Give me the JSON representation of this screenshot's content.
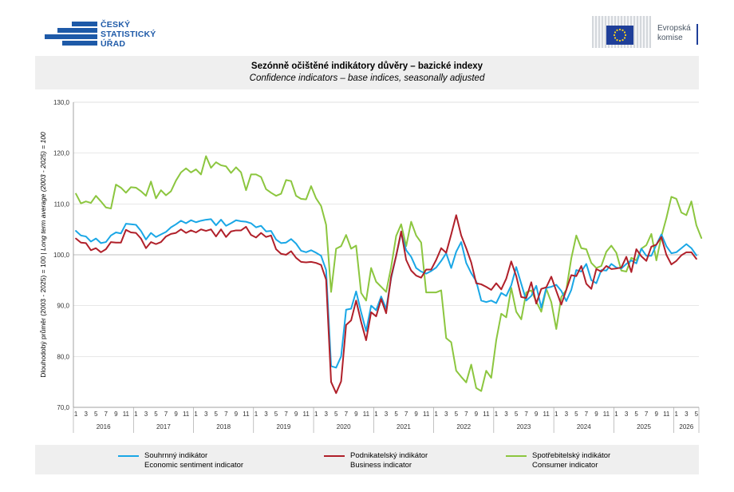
{
  "logos": {
    "csu": {
      "line1": "ČESKÝ",
      "line2": "STATISTICKÝ",
      "line3": "ÚŘAD",
      "color": "#1e5aa8"
    },
    "ec": {
      "line1": "Evropská",
      "line2": "komise",
      "color": "#1f3f99"
    }
  },
  "colors": {
    "sentiment": "#1aa7e6",
    "business": "#b0202a",
    "consumer": "#8cc63f",
    "grid": "#d9d9d9",
    "reference": "#bfbfbf"
  },
  "chart_data": {
    "type": "line",
    "title": "Sezónně očištěné indikátory důvěry – bazické indexy",
    "subtitle": "Confidence indicators – base indices, seasonally adjusted",
    "ylabel_main": "Dlouhodobý průměr (2003 - 2025) = 100 | ",
    "ylabel_italic": "Long term average (2003 - 2025) = 100",
    "ylim": [
      70,
      130
    ],
    "yticks": [
      "70,0",
      "80,0",
      "90,0",
      "100,0",
      "110,0",
      "120,0",
      "130,0"
    ],
    "x_month_labels": [
      "1",
      "3",
      "5",
      "7",
      "9",
      "11"
    ],
    "years": [
      "2016",
      "2017",
      "2018",
      "2019",
      "2020",
      "2021",
      "2022",
      "2023",
      "2024",
      "2025",
      "2026"
    ],
    "x_start": "2016-01",
    "x_end": "2026-05",
    "grid": "horizontal",
    "legend_position": "bottom",
    "series": [
      {
        "key": "sentiment",
        "name": "Souhrnný indikátor",
        "name_en": "Economic sentiment indicator",
        "values": [
          104.7,
          103.8,
          103.6,
          102.6,
          103.2,
          102.3,
          102.5,
          103.8,
          104.4,
          104.2,
          106.1,
          106.0,
          105.9,
          104.7,
          103.0,
          104.3,
          103.5,
          104.0,
          104.5,
          105.4,
          106.0,
          106.7,
          106.2,
          106.8,
          106.4,
          106.7,
          106.9,
          107.0,
          105.8,
          106.9,
          105.7,
          106.2,
          106.8,
          106.6,
          106.5,
          106.2,
          105.4,
          105.7,
          104.6,
          104.7,
          103.0,
          102.3,
          102.4,
          103.1,
          102.2,
          100.8,
          100.5,
          100.9,
          100.4,
          99.8,
          97.0,
          78.1,
          77.8,
          80.0,
          89.2,
          89.4,
          92.8,
          88.7,
          85.0,
          90.0,
          89.1,
          91.8,
          89.4,
          95.4,
          99.8,
          104.3,
          100.9,
          99.6,
          97.4,
          96.7,
          96.3,
          96.8,
          97.5,
          98.8,
          100.3,
          97.4,
          100.6,
          102.5,
          98.4,
          96.4,
          94.8,
          91.0,
          90.7,
          91.0,
          90.5,
          92.5,
          91.9,
          94.0,
          97.6,
          94.3,
          91.0,
          91.9,
          93.9,
          89.6,
          93.5,
          93.7,
          94.1,
          92.9,
          90.9,
          93.1,
          97.0,
          96.7,
          98.2,
          95.0,
          94.4,
          97.0,
          96.9,
          98.2,
          97.5,
          97.3,
          98.2,
          98.9,
          98.3,
          101.2,
          99.8,
          99.8,
          102.0,
          104.0,
          101.7,
          100.3,
          100.5,
          101.3,
          102.1,
          101.3,
          99.9
        ]
      },
      {
        "key": "business",
        "name": "Podnikatelský indikátor",
        "name_en": "Business indicator",
        "values": [
          103.2,
          102.4,
          102.3,
          100.9,
          101.3,
          100.5,
          101.1,
          102.5,
          102.4,
          102.4,
          104.9,
          104.4,
          104.3,
          103.2,
          101.3,
          102.5,
          102.1,
          102.5,
          103.6,
          104.1,
          104.3,
          105.0,
          104.3,
          104.8,
          104.4,
          105.0,
          104.7,
          105.0,
          103.6,
          105.0,
          103.5,
          104.6,
          104.8,
          104.8,
          105.5,
          103.9,
          103.4,
          104.3,
          103.5,
          103.8,
          101.1,
          100.2,
          100.0,
          100.7,
          99.4,
          98.6,
          98.5,
          98.6,
          98.4,
          98.0,
          95.1,
          75.0,
          72.8,
          75.1,
          86.2,
          87.1,
          91.0,
          86.8,
          83.2,
          88.7,
          87.9,
          91.3,
          88.5,
          95.7,
          99.8,
          104.6,
          99.0,
          96.9,
          95.9,
          95.5,
          97.1,
          97.1,
          99.0,
          101.3,
          100.4,
          104.0,
          107.8,
          103.8,
          101.3,
          98.5,
          94.4,
          94.2,
          93.7,
          93.1,
          94.4,
          93.2,
          95.3,
          98.7,
          95.8,
          91.7,
          91.5,
          94.6,
          90.4,
          93.3,
          93.6,
          95.7,
          92.9,
          90.2,
          93.1,
          96.0,
          95.8,
          97.8,
          94.3,
          93.3,
          97.2,
          96.7,
          97.8,
          97.2,
          97.3,
          97.5,
          99.6,
          96.6,
          101.1,
          99.7,
          98.8,
          101.6,
          102.0,
          103.5,
          100.0,
          98.1,
          98.8,
          99.9,
          100.5,
          100.5,
          99.2
        ]
      },
      {
        "key": "consumer",
        "name": "Spotřebitelský indikátor",
        "name_en": "Consumer indicator",
        "values": [
          112.0,
          110.1,
          110.5,
          110.2,
          111.6,
          110.5,
          109.3,
          109.1,
          113.8,
          113.2,
          112.2,
          113.3,
          113.2,
          112.5,
          111.6,
          114.4,
          111.1,
          112.7,
          111.7,
          112.5,
          114.6,
          116.2,
          117.0,
          116.2,
          116.8,
          115.8,
          119.4,
          117.1,
          118.2,
          117.6,
          117.4,
          116.1,
          117.2,
          116.2,
          112.7,
          115.8,
          115.8,
          115.3,
          112.9,
          112.2,
          111.6,
          112.0,
          114.7,
          114.5,
          111.6,
          111.0,
          110.9,
          113.5,
          111.1,
          109.6,
          105.9,
          92.7,
          101.2,
          101.7,
          103.9,
          101.2,
          101.8,
          92.5,
          91.0,
          97.4,
          94.7,
          93.7,
          92.7,
          97.6,
          103.7,
          106.0,
          101.7,
          106.5,
          103.8,
          102.4,
          92.6,
          92.6,
          92.6,
          93.0,
          83.6,
          82.8,
          77.2,
          76.0,
          74.9,
          78.4,
          73.8,
          73.2,
          77.2,
          75.8,
          83.2,
          88.4,
          87.7,
          93.5,
          88.8,
          87.3,
          92.6,
          93.0,
          90.8,
          88.8,
          93.3,
          90.7,
          85.4,
          91.7,
          93.1,
          99.3,
          103.8,
          101.3,
          101.1,
          98.4,
          97.4,
          97.8,
          100.6,
          101.8,
          100.4,
          96.9,
          96.7,
          99.4,
          98.9,
          101.2,
          101.9,
          104.1,
          98.9,
          103.6,
          107.2,
          111.4,
          111.0,
          108.3,
          107.8,
          110.5,
          105.8,
          103.3
        ]
      }
    ]
  }
}
